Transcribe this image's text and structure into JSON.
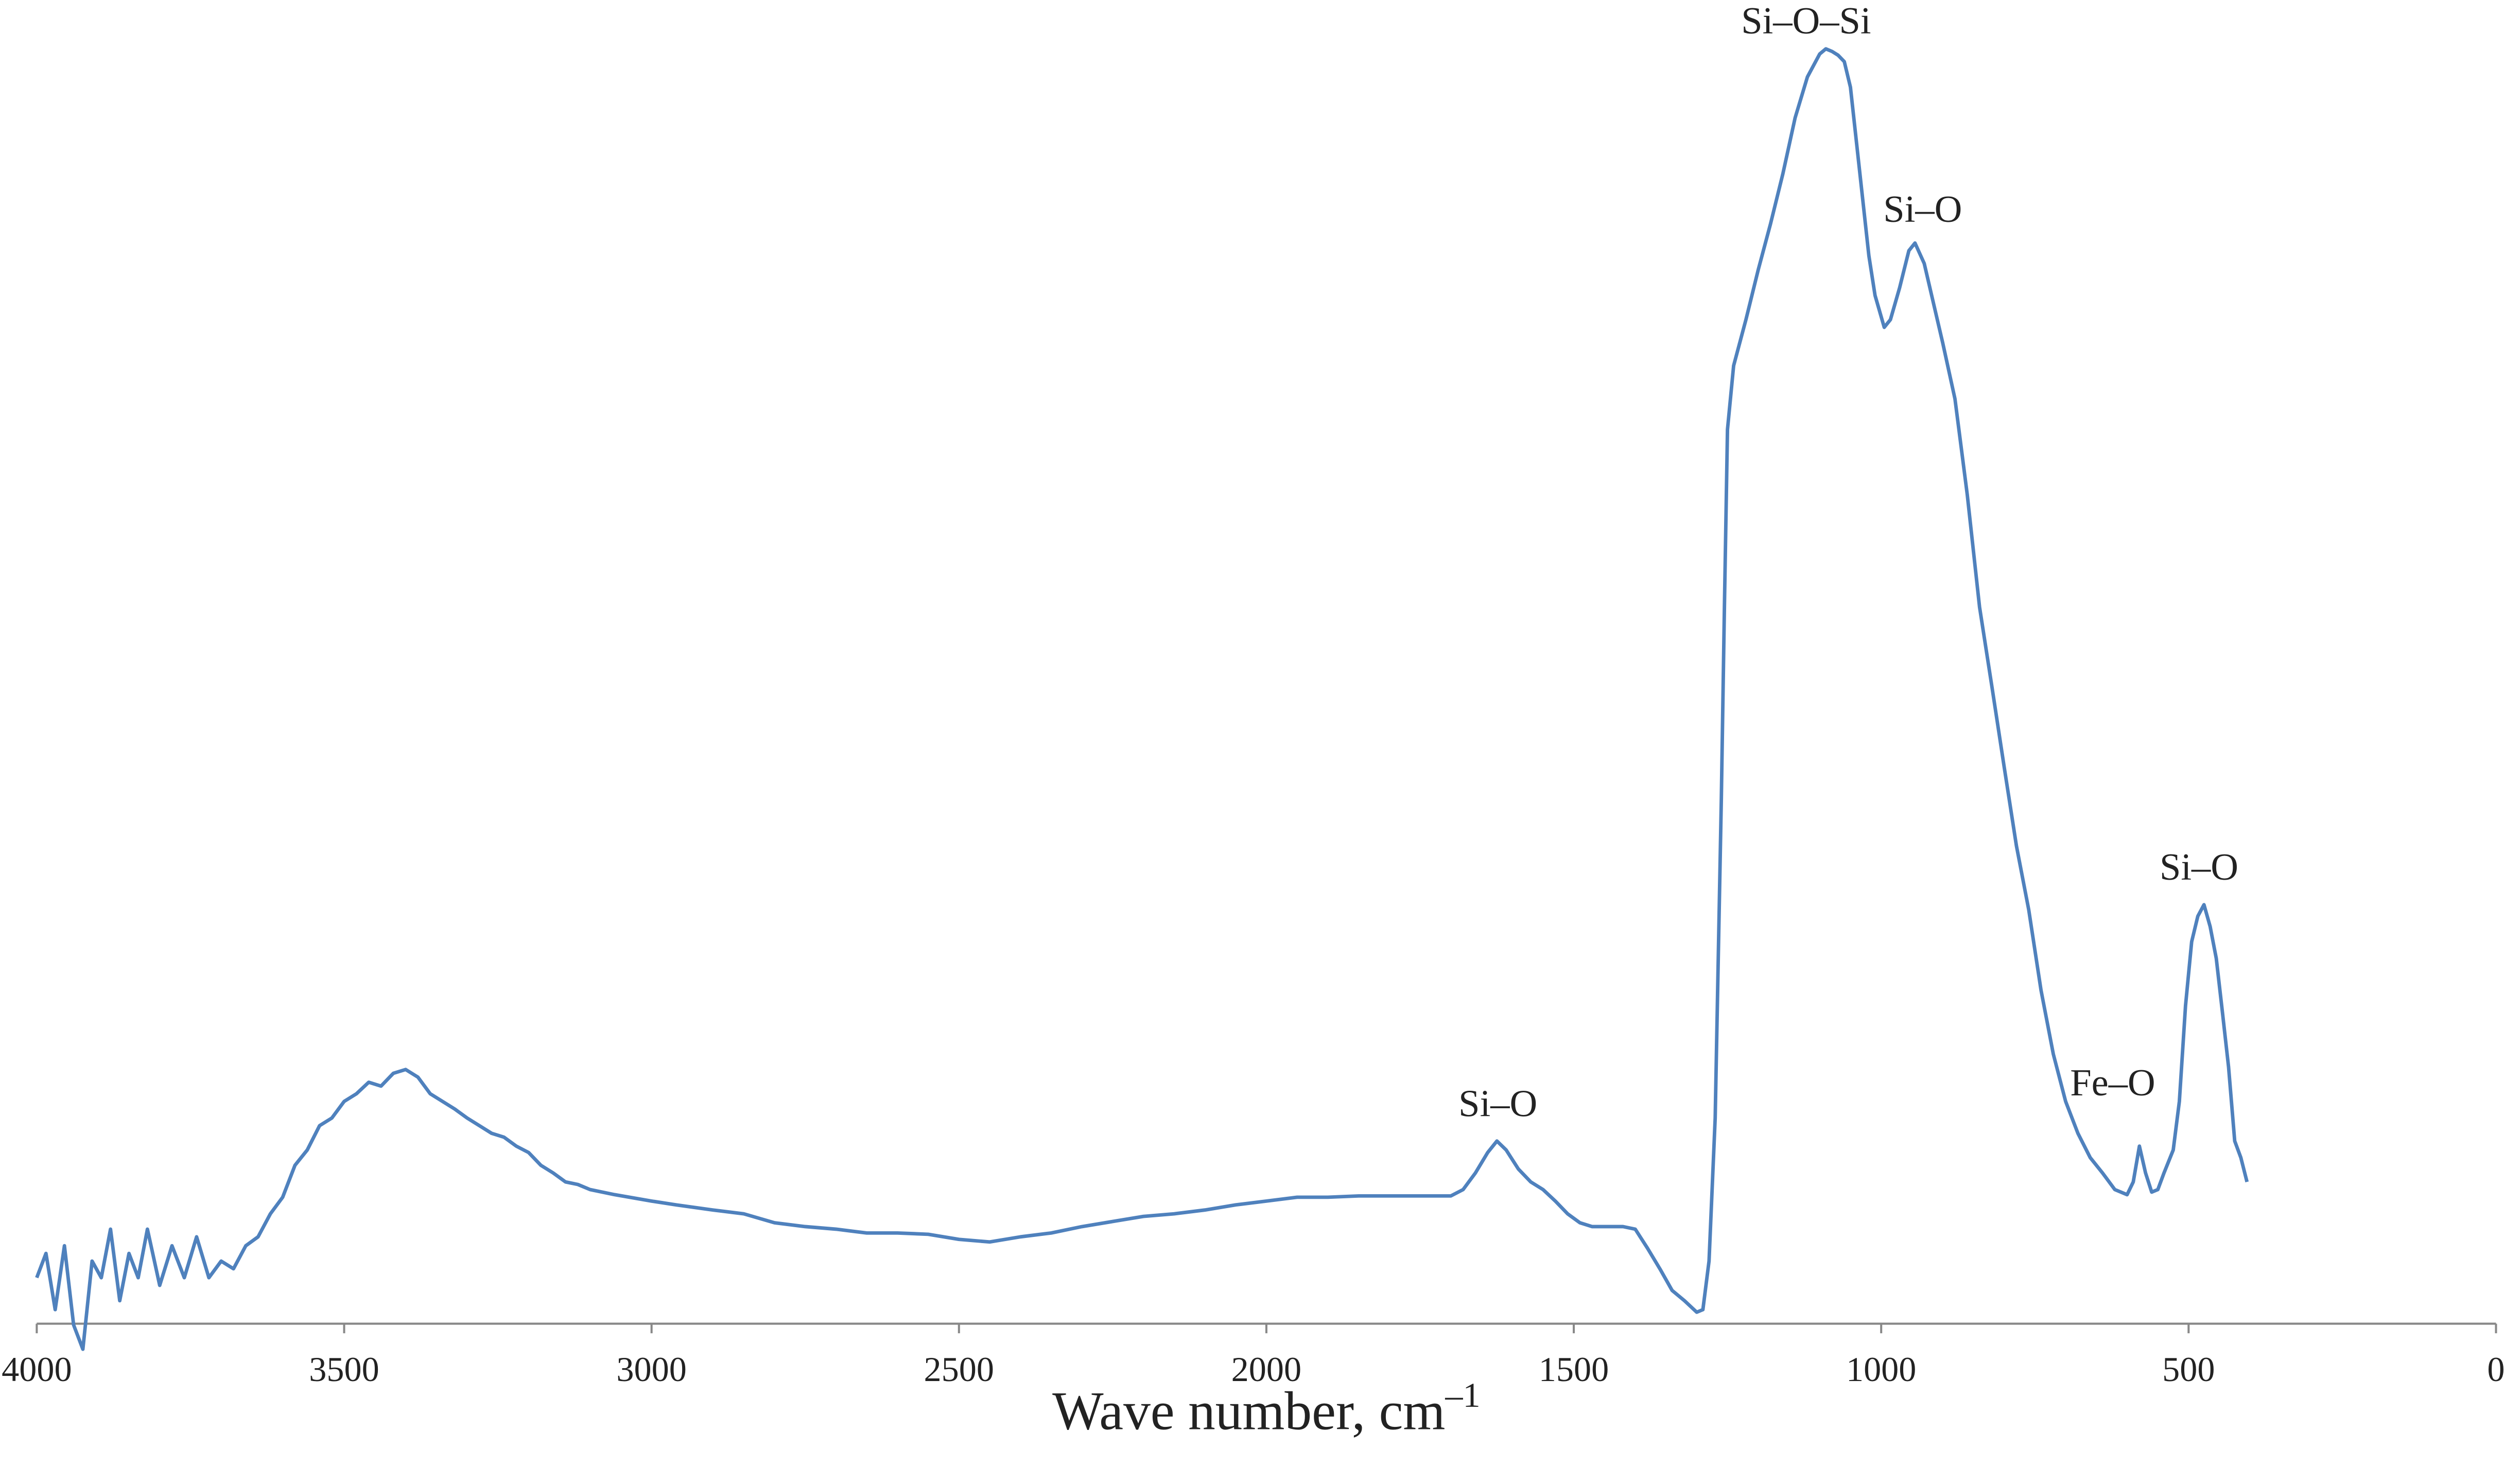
{
  "chart_data": {
    "type": "line",
    "x_label": "Wave number, cm",
    "x_label_exponent": "–1",
    "xlim": [
      4000,
      0
    ],
    "xticks": [
      4000,
      3500,
      3000,
      2500,
      2000,
      1500,
      1000,
      500,
      0
    ],
    "ylim": [
      0,
      100
    ],
    "annotations": [
      "Si–O–Si",
      "Si–O",
      "Si–O",
      "Fe–O",
      "Si–O"
    ],
    "series": [
      {
        "color": "#4f81bd",
        "x": [
          4000,
          3985,
          3970,
          3955,
          3940,
          3925,
          3910,
          3895,
          3880,
          3865,
          3850,
          3835,
          3820,
          3800,
          3780,
          3760,
          3740,
          3720,
          3700,
          3680,
          3660,
          3640,
          3620,
          3600,
          3580,
          3560,
          3540,
          3520,
          3500,
          3480,
          3460,
          3440,
          3420,
          3400,
          3380,
          3360,
          3340,
          3320,
          3300,
          3280,
          3260,
          3240,
          3220,
          3200,
          3180,
          3160,
          3140,
          3120,
          3100,
          3060,
          3000,
          2960,
          2900,
          2850,
          2800,
          2750,
          2700,
          2650,
          2600,
          2550,
          2500,
          2450,
          2400,
          2350,
          2300,
          2250,
          2200,
          2150,
          2100,
          2050,
          2000,
          1950,
          1900,
          1850,
          1800,
          1750,
          1700,
          1680,
          1660,
          1640,
          1625,
          1610,
          1590,
          1570,
          1550,
          1530,
          1510,
          1490,
          1470,
          1450,
          1420,
          1400,
          1380,
          1360,
          1340,
          1320,
          1300,
          1290,
          1280,
          1270,
          1260,
          1255,
          1250,
          1240,
          1220,
          1200,
          1180,
          1160,
          1140,
          1120,
          1100,
          1090,
          1080,
          1070,
          1060,
          1050,
          1040,
          1030,
          1020,
          1010,
          995,
          985,
          970,
          955,
          945,
          930,
          915,
          900,
          880,
          860,
          840,
          820,
          800,
          780,
          760,
          740,
          720,
          700,
          680,
          660,
          640,
          620,
          600,
          590,
          580,
          570,
          560,
          550,
          540,
          525,
          515,
          505,
          495,
          485,
          475,
          465,
          455,
          445,
          435,
          425,
          415,
          405
        ],
        "values": [
          3.6,
          5.5,
          1.1,
          6.1,
          -0.1,
          -2,
          4.9,
          3.6,
          7.4,
          1.8,
          5.5,
          3.6,
          7.4,
          3,
          6.1,
          3.6,
          6.8,
          3.6,
          4.9,
          4.3,
          6.1,
          6.8,
          8.6,
          9.9,
          12.4,
          13.6,
          15.5,
          16.1,
          17.4,
          18,
          18.9,
          18.6,
          19.6,
          19.9,
          19.3,
          18,
          17.4,
          16.8,
          16.1,
          15.5,
          14.9,
          14.6,
          13.9,
          13.4,
          12.4,
          11.8,
          11.1,
          10.9,
          10.5,
          10.1,
          9.6,
          9.3,
          8.9,
          8.6,
          7.9,
          7.6,
          7.4,
          7.1,
          7.1,
          7,
          6.6,
          6.4,
          6.8,
          7.1,
          7.6,
          8,
          8.4,
          8.6,
          8.9,
          9.3,
          9.6,
          9.9,
          9.9,
          10,
          10,
          10,
          10,
          10.5,
          11.8,
          13.4,
          14.3,
          13.6,
          12.1,
          11.1,
          10.5,
          9.6,
          8.6,
          7.9,
          7.6,
          7.6,
          7.6,
          7.4,
          5.9,
          4.3,
          2.6,
          1.8,
          0.9,
          1.1,
          4.9,
          16.1,
          41.1,
          56.1,
          70,
          75,
          78.6,
          82.5,
          86.1,
          90,
          94.4,
          97.6,
          99.4,
          99.8,
          99.6,
          99.3,
          98.8,
          96.8,
          92.4,
          88,
          83.6,
          80.5,
          78,
          78.6,
          81.1,
          84,
          84.6,
          83,
          79.9,
          76.8,
          72.4,
          64.9,
          56.1,
          49.9,
          43.6,
          37.4,
          32.4,
          26.1,
          21.1,
          17.4,
          14.9,
          13,
          11.8,
          10.5,
          10.1,
          11.1,
          13.9,
          11.8,
          10.3,
          10.5,
          11.8,
          13.6,
          17.4,
          24.9,
          29.9,
          31.9,
          32.8,
          31.1,
          28.6,
          24.4,
          20.1,
          14.3,
          13,
          11.1
        ]
      }
    ]
  }
}
